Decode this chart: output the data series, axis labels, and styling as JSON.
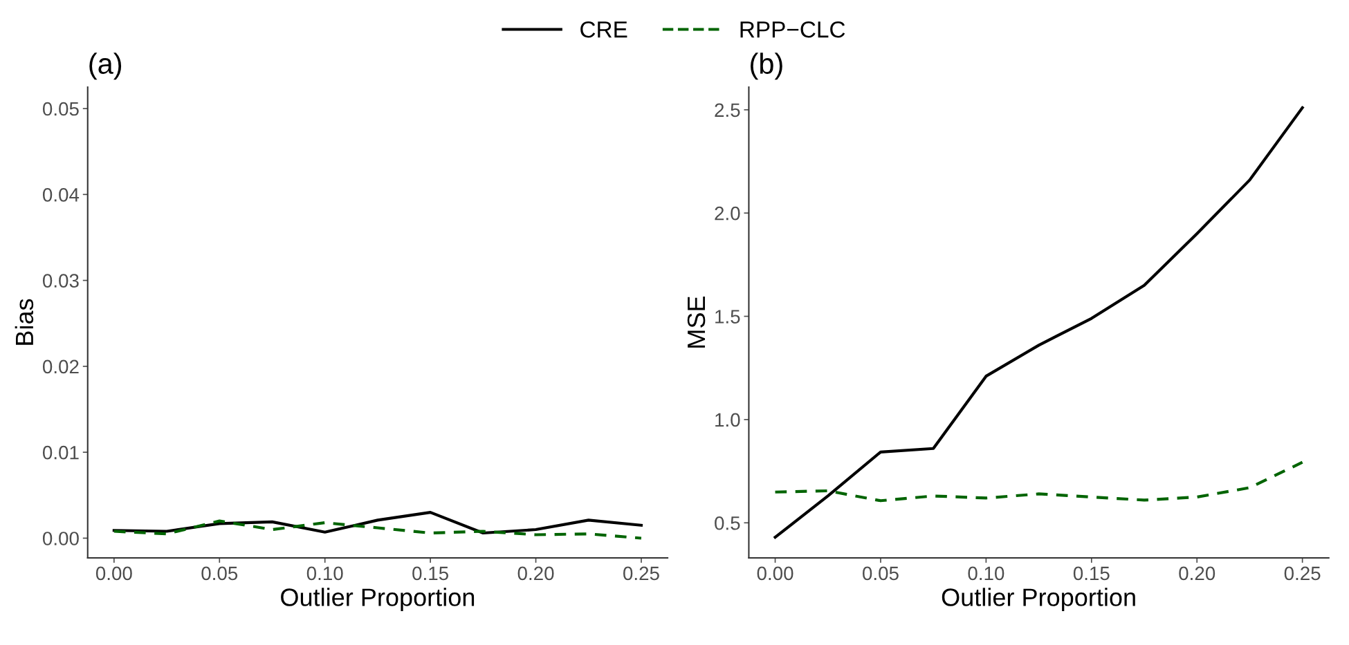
{
  "chart_data": [
    {
      "type": "line",
      "title": "(a)",
      "xlabel": "Outlier Proportion",
      "ylabel": "Bias",
      "x": [
        0,
        0.025,
        0.05,
        0.075,
        0.1,
        0.125,
        0.15,
        0.175,
        0.2,
        0.225,
        0.25
      ],
      "xlim": [
        -0.0125,
        0.2625
      ],
      "xticks": [
        {
          "value": 0,
          "label": "0.00"
        },
        {
          "value": 0.05,
          "label": "0.05"
        },
        {
          "value": 0.1,
          "label": "0.10"
        },
        {
          "value": 0.15,
          "label": "0.15"
        },
        {
          "value": 0.2,
          "label": "0.20"
        },
        {
          "value": 0.25,
          "label": "0.25"
        }
      ],
      "ylim": [
        -0.0023,
        0.0525
      ],
      "yticks": [
        {
          "value": 0,
          "label": "0.00"
        },
        {
          "value": 0.01,
          "label": "0.01"
        },
        {
          "value": 0.02,
          "label": "0.02"
        },
        {
          "value": 0.03,
          "label": "0.03"
        },
        {
          "value": 0.04,
          "label": "0.04"
        },
        {
          "value": 0.05,
          "label": "0.05"
        }
      ],
      "grid": false,
      "legend": "top",
      "series": [
        {
          "name": "CRE",
          "color": "#000000",
          "line_style": "solid",
          "values": [
            0.0009,
            0.0008,
            0.0017,
            0.0019,
            0.0007,
            0.0021,
            0.003,
            0.0006,
            0.001,
            0.0021,
            0.0015
          ]
        },
        {
          "name": "RPP−CLC",
          "color": "#006400",
          "line_style": "dashed",
          "values": [
            0.0008,
            0.0005,
            0.002,
            0.001,
            0.0018,
            0.0012,
            0.0006,
            0.0008,
            0.0004,
            0.0005,
            0.0
          ]
        }
      ]
    },
    {
      "type": "line",
      "title": "(b)",
      "xlabel": "Outlier Proportion",
      "ylabel": "MSE",
      "x": [
        0,
        0.025,
        0.05,
        0.075,
        0.1,
        0.125,
        0.15,
        0.175,
        0.2,
        0.225,
        0.25
      ],
      "xlim": [
        -0.0125,
        0.2625
      ],
      "xticks": [
        {
          "value": 0,
          "label": "0.00"
        },
        {
          "value": 0.05,
          "label": "0.05"
        },
        {
          "value": 0.1,
          "label": "0.10"
        },
        {
          "value": 0.15,
          "label": "0.15"
        },
        {
          "value": 0.2,
          "label": "0.20"
        },
        {
          "value": 0.25,
          "label": "0.25"
        }
      ],
      "ylim": [
        0.33,
        2.61
      ],
      "yticks": [
        0.5,
        {
          "value": 1,
          "label": "1.0"
        },
        1.5,
        {
          "value": 2,
          "label": "2.0"
        },
        2.5
      ],
      "grid": false,
      "series": [
        {
          "name": "CRE",
          "color": "#000000",
          "line_style": "solid",
          "values": [
            0.43,
            0.63,
            0.843,
            0.86,
            1.21,
            1.36,
            1.49,
            1.65,
            1.9,
            2.16,
            2.51
          ]
        },
        {
          "name": "RPP−CLC",
          "color": "#006400",
          "line_style": "dashed",
          "values": [
            0.649,
            0.655,
            0.607,
            0.63,
            0.62,
            0.64,
            0.625,
            0.61,
            0.625,
            0.67,
            0.793
          ]
        }
      ]
    }
  ]
}
